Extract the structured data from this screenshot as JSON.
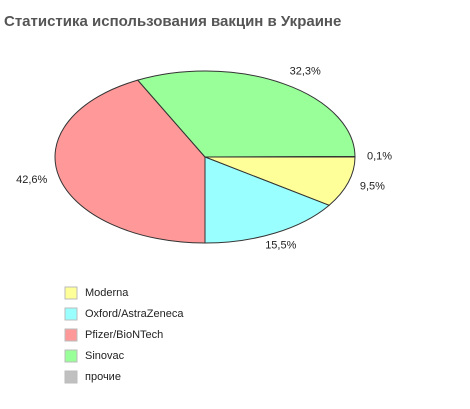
{
  "chart_data": {
    "type": "pie",
    "title": "Статистика использования вакцин в Украине",
    "categories": [
      "Moderna",
      "Oxford/AstraZeneca",
      "Pfizer/BioNTech",
      "Sinovac",
      "прочие"
    ],
    "values": [
      9.5,
      15.5,
      42.6,
      32.3,
      0.1
    ],
    "value_labels": [
      "9,5%",
      "15,5%",
      "42,6%",
      "32,3%",
      "0,1%"
    ],
    "colors": [
      "#ffff99",
      "#99ffff",
      "#ff9999",
      "#99ff99",
      "#c0c0c0"
    ]
  }
}
